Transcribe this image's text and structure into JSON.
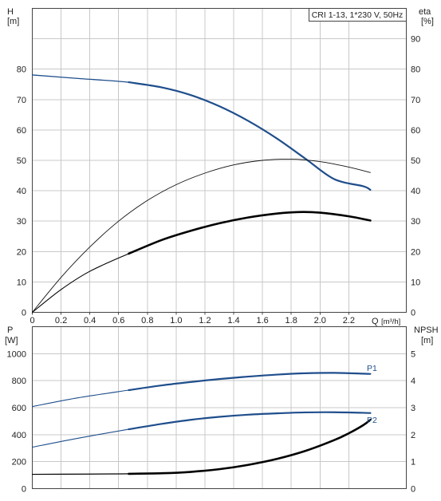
{
  "chart_data": [
    {
      "type": "line",
      "title": "CRI 1-13, 1*230 V, 50Hz",
      "xlabel": "Q [m³/h]",
      "x_unit_label": "[m³/h]",
      "x_axis_letter": "Q",
      "ylabel_left": "H",
      "ylabel_left_unit": "[m]",
      "ylabel_right": "eta",
      "ylabel_right_unit": "[%]",
      "xlim": [
        0,
        2.6
      ],
      "ylim_left": [
        0,
        100
      ],
      "ylim_right": [
        0,
        100
      ],
      "x_ticks": [
        0,
        0.2,
        0.4,
        0.6,
        0.8,
        1.0,
        1.2,
        1.4,
        1.6,
        1.8,
        2.0,
        2.2
      ],
      "x_tick_labels": [
        "0",
        "0.2",
        "0.4",
        "0.6",
        "0.8",
        "1.0",
        "1.2",
        "1.4",
        "1.6",
        "1.8",
        "2.0",
        "2.2"
      ],
      "y_ticks_left": [
        0,
        10,
        20,
        30,
        40,
        50,
        60,
        70,
        80
      ],
      "y_ticks_right": [
        0,
        10,
        20,
        30,
        40,
        50,
        60,
        70,
        80,
        90
      ],
      "grid": true,
      "series": [
        {
          "axis": "left",
          "color": "#1f4e8c",
          "x": [
            0,
            0.3,
            0.67,
            0.9,
            1.1,
            1.3,
            1.5,
            1.7,
            1.9,
            2.1,
            2.3,
            2.35
          ],
          "y": [
            78.1,
            77.0,
            75.7,
            74.0,
            71.5,
            67.8,
            63.0,
            57.2,
            50.5,
            43.8,
            41.5,
            40.3
          ],
          "duty_range": [
            0.67,
            2.35
          ]
        },
        {
          "axis": "right",
          "color": "#111111",
          "x": [
            0,
            0.2,
            0.4,
            0.6,
            0.8,
            1.0,
            1.2,
            1.4,
            1.6,
            1.8,
            2.0,
            2.2,
            2.35
          ],
          "y": [
            0,
            11.5,
            21.5,
            30.0,
            36.8,
            42.0,
            45.8,
            48.5,
            50.0,
            50.4,
            49.6,
            47.8,
            46.0
          ]
        },
        {
          "axis": "right",
          "color": "#000000",
          "x": [
            0,
            0.2,
            0.4,
            0.67,
            0.9,
            1.1,
            1.3,
            1.5,
            1.7,
            1.85,
            2.0,
            2.2,
            2.35
          ],
          "y": [
            0,
            7.5,
            13.5,
            19.3,
            23.8,
            26.8,
            29.3,
            31.2,
            32.5,
            33.0,
            32.8,
            31.6,
            30.2
          ],
          "duty_range": [
            0.67,
            2.35
          ]
        }
      ]
    },
    {
      "type": "line",
      "xlabel": "",
      "ylabel_left": "P",
      "ylabel_left_unit": "[W]",
      "ylabel_right": "NPSH",
      "ylabel_right_unit": "[m]",
      "xlim": [
        0,
        2.6
      ],
      "ylim_left": [
        0,
        1200
      ],
      "ylim_right": [
        0,
        6
      ],
      "y_ticks_left": [
        0,
        200,
        400,
        600,
        800,
        1000
      ],
      "y_ticks_right": [
        0,
        1,
        2,
        3,
        4,
        5
      ],
      "grid": true,
      "series": [
        {
          "name": "P1",
          "axis": "left",
          "color": "#1f4e8c",
          "x": [
            0,
            0.3,
            0.67,
            0.9,
            1.1,
            1.3,
            1.5,
            1.7,
            1.9,
            2.1,
            2.3,
            2.35
          ],
          "y": [
            608,
            670,
            730,
            765,
            790,
            812,
            830,
            845,
            855,
            858,
            852,
            850
          ],
          "duty_range": [
            0.67,
            2.35
          ]
        },
        {
          "name": "P2",
          "axis": "left",
          "color": "#1f4e8c",
          "x": [
            0,
            0.3,
            0.67,
            0.9,
            1.1,
            1.3,
            1.5,
            1.7,
            1.9,
            2.1,
            2.3,
            2.35
          ],
          "y": [
            307,
            370,
            440,
            480,
            510,
            532,
            548,
            558,
            565,
            566,
            562,
            560
          ],
          "duty_range": [
            0.67,
            2.35
          ]
        },
        {
          "axis": "right",
          "color": "#000000",
          "x": [
            0,
            0.4,
            0.67,
            0.9,
            1.1,
            1.3,
            1.5,
            1.7,
            1.9,
            2.1,
            2.2,
            2.3,
            2.35
          ],
          "y": [
            0.53,
            0.54,
            0.55,
            0.57,
            0.62,
            0.72,
            0.88,
            1.1,
            1.4,
            1.8,
            2.05,
            2.35,
            2.55
          ],
          "duty_range": [
            0.67,
            2.35
          ]
        }
      ]
    }
  ]
}
